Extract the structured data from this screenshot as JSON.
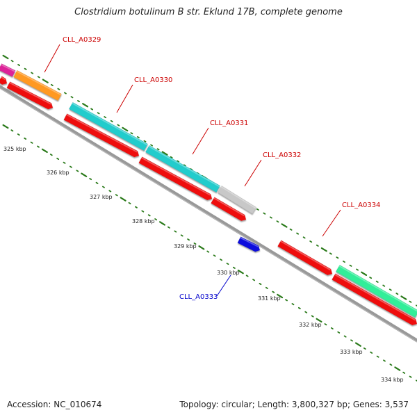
{
  "title": "Clostridium botulinum B str. Eklund 17B, complete genome",
  "footer": {
    "accession": "Accession: NC_010674",
    "topology": "Topology: circular; Length: 3,800,327 bp; Genes: 3,537"
  },
  "gene_labels": [
    {
      "text": "CLL_A0329",
      "color": "#cc0000"
    },
    {
      "text": "CLL_A0330",
      "color": "#cc0000"
    },
    {
      "text": "CLL_A0331",
      "color": "#cc0000"
    },
    {
      "text": "CLL_A0332",
      "color": "#cc0000"
    },
    {
      "text": "CLL_A0333",
      "color": "#0000cc"
    },
    {
      "text": "CLL_A0334",
      "color": "#cc0000"
    }
  ],
  "kbp_ticks": [
    "325 kbp",
    "326 kbp",
    "327 kbp",
    "328 kbp",
    "329 kbp",
    "330 kbp",
    "331 kbp",
    "332 kbp",
    "333 kbp",
    "334 kbp"
  ],
  "colors": {
    "cds": "#ee1111",
    "backbone": "#888888",
    "tick": "#2a7a1a",
    "magenta": "#dd2299",
    "orange": "#ff9922",
    "cyan": "#22cccc",
    "gray_feature": "#c8c8c8",
    "blue_feature": "#1111dd",
    "teal_feature": "#33ee99"
  }
}
